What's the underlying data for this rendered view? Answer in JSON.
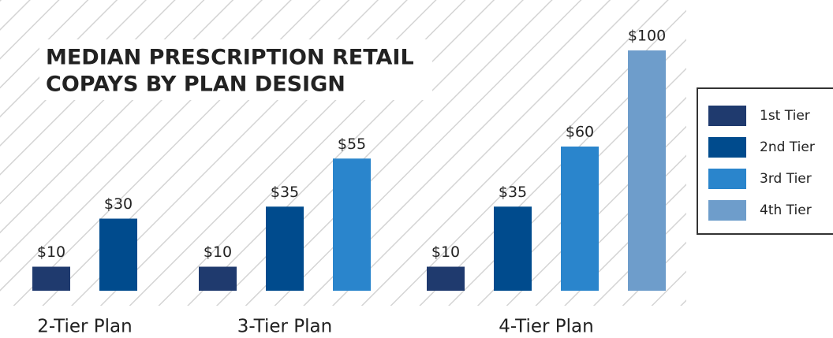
{
  "chart_data": {
    "type": "bar",
    "title": [
      "MEDIAN PRESCRIPTION RETAIL",
      "COPAYS BY PLAN DESIGN"
    ],
    "categories": [
      "2-Tier Plan",
      "3-Tier Plan",
      "4-Tier Plan"
    ],
    "series": [
      {
        "name": "1st Tier",
        "color": "#1f3a6e",
        "values": [
          10,
          10,
          10
        ],
        "value_labels": [
          "$10",
          "$10",
          "$10"
        ]
      },
      {
        "name": "2nd Tier",
        "color": "#004b8d",
        "values": [
          30,
          35,
          35
        ],
        "value_labels": [
          "$30",
          "$35",
          "$35"
        ]
      },
      {
        "name": "3rd Tier",
        "color": "#2a85cc",
        "values": [
          null,
          55,
          60
        ],
        "value_labels": [
          null,
          "$55",
          "$60"
        ]
      },
      {
        "name": "4th Tier",
        "color": "#6e9dcb",
        "values": [
          null,
          null,
          100
        ],
        "value_labels": [
          null,
          null,
          "$100"
        ]
      }
    ],
    "legend": "right"
  }
}
